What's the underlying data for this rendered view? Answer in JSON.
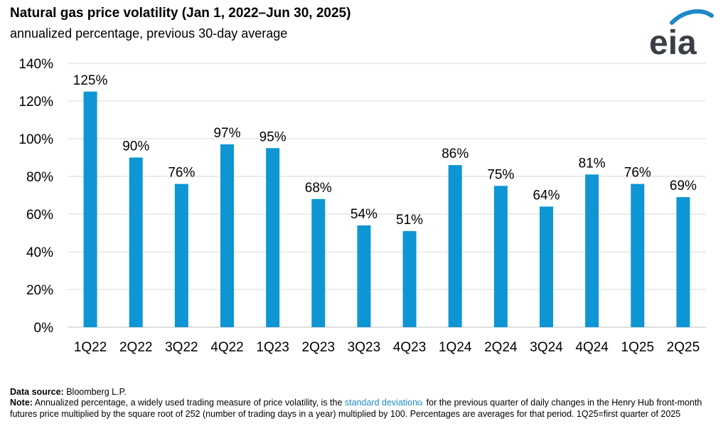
{
  "header": {
    "title": "Natural gas price volatility (Jan 1, 2022–Jun 30, 2025)",
    "subtitle": "annualized percentage, previous 30-day average",
    "logo_text": "eia"
  },
  "chart_data": {
    "type": "bar",
    "categories": [
      "1Q22",
      "2Q22",
      "3Q22",
      "4Q22",
      "1Q23",
      "2Q23",
      "3Q23",
      "4Q23",
      "1Q24",
      "2Q24",
      "3Q24",
      "4Q24",
      "1Q25",
      "2Q25"
    ],
    "values": [
      125,
      90,
      76,
      97,
      95,
      68,
      54,
      51,
      86,
      75,
      64,
      81,
      76,
      69
    ],
    "data_labels": [
      "125%",
      "90%",
      "76%",
      "97%",
      "95%",
      "68%",
      "54%",
      "51%",
      "86%",
      "75%",
      "64%",
      "81%",
      "76%",
      "69%"
    ],
    "yticks": [
      "0%",
      "20%",
      "40%",
      "60%",
      "80%",
      "100%",
      "120%",
      "140%"
    ],
    "ylim": [
      0,
      140
    ],
    "grid": true,
    "bar_color": "#0e95d4",
    "grid_color": "#d9d9d9"
  },
  "footnote": {
    "source_label": "Data source:",
    "source_text": "Bloomberg L.P.",
    "note_label": "Note:",
    "note_before_link": "Annualized percentage, a widely used trading measure of price volatility, is the",
    "note_link": "standard deviation",
    "note_after_link": "for the previous quarter of daily changes in the Henry Hub front-month futures price multiplied by the square root of 252 (number of trading days in a year) multiplied by 100. Percentages are averages for that period. 1Q25=first quarter of 2025"
  }
}
